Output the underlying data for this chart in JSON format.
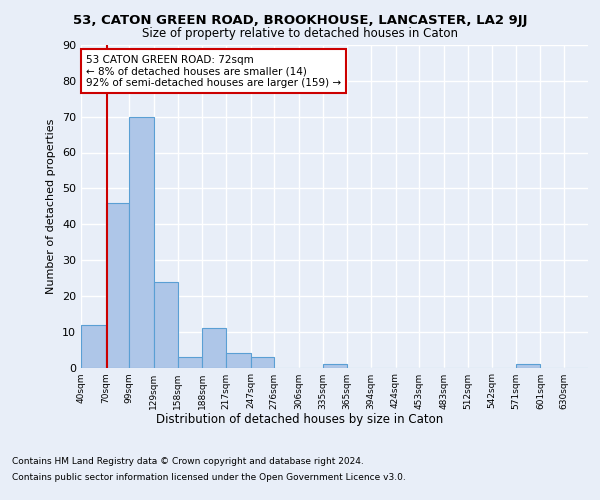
{
  "title1": "53, CATON GREEN ROAD, BROOKHOUSE, LANCASTER, LA2 9JJ",
  "title2": "Size of property relative to detached houses in Caton",
  "xlabel": "Distribution of detached houses by size in Caton",
  "ylabel": "Number of detached properties",
  "bin_labels": [
    "40sqm",
    "70sqm",
    "99sqm",
    "129sqm",
    "158sqm",
    "188sqm",
    "217sqm",
    "247sqm",
    "276sqm",
    "306sqm",
    "335sqm",
    "365sqm",
    "394sqm",
    "424sqm",
    "453sqm",
    "483sqm",
    "512sqm",
    "542sqm",
    "571sqm",
    "601sqm",
    "630sqm"
  ],
  "bin_edges": [
    40,
    70,
    99,
    129,
    158,
    188,
    217,
    247,
    276,
    306,
    335,
    365,
    394,
    424,
    453,
    483,
    512,
    542,
    571,
    601,
    630
  ],
  "values": [
    12,
    46,
    70,
    24,
    3,
    11,
    4,
    3,
    0,
    0,
    1,
    0,
    0,
    0,
    0,
    0,
    0,
    0,
    1,
    0,
    0
  ],
  "bar_color": "#aec6e8",
  "bar_edge_color": "#5a9fd4",
  "property_size": 72,
  "red_line_color": "#cc0000",
  "annotation_text": "53 CATON GREEN ROAD: 72sqm\n← 8% of detached houses are smaller (14)\n92% of semi-detached houses are larger (159) →",
  "annotation_box_color": "#ffffff",
  "annotation_border_color": "#cc0000",
  "footer1": "Contains HM Land Registry data © Crown copyright and database right 2024.",
  "footer2": "Contains public sector information licensed under the Open Government Licence v3.0.",
  "bg_color": "#e8eef8",
  "plot_bg_color": "#e8eef8",
  "grid_color": "#ffffff",
  "ylim": [
    0,
    90
  ],
  "yticks": [
    0,
    10,
    20,
    30,
    40,
    50,
    60,
    70,
    80,
    90
  ]
}
